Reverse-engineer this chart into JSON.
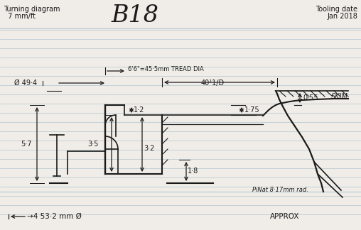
{
  "title_left1": "Turning diagram",
  "title_left2": "  7 mm/ft",
  "title_center": "B18",
  "title_right1": "Tooling date",
  "title_right2": "Jan 2018",
  "annotation_bottom_left": "→4 53·2 mm Ø",
  "annotation_bottom_right": "APPROX",
  "annotation_pin": "PiNat 8·17mm rad.",
  "annotation_skim": "SKIM",
  "dim_tread": "6'6\"=45·5mm TREAD DIA",
  "dim_409": "40¹1/D",
  "dim_055": "0·55",
  "dim_175": "1·75",
  "dim_12": "1·2",
  "dim_35": "3·5",
  "dim_32": "3·2",
  "dim_18": "1·8",
  "dim_494": "Ø 49·4",
  "dim_57": "5·7",
  "bg_color": "#f0ede8",
  "line_color": "#1a1a1a",
  "ruled_line_color": "#b8c8d0"
}
